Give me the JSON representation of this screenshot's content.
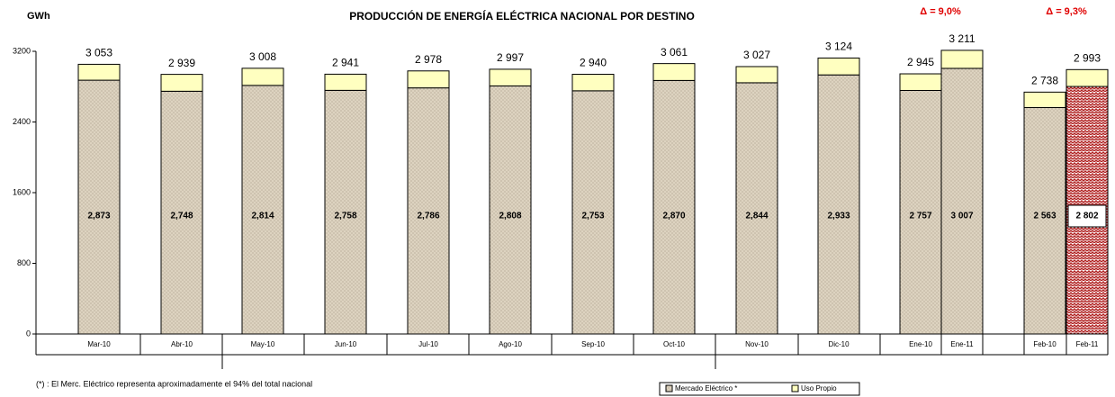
{
  "chart_data": {
    "type": "stacked_bar",
    "title": "PRODUCCIÓN DE ENERGÍA ELÉCTRICA NACIONAL POR DESTINO",
    "y_label": "GWh",
    "annotations": [
      "Δ = 9,0%",
      "Δ = 9,3%"
    ],
    "footnote": "(*) : El Merc. Eléctrico representa aproximadamente el 94% del total nacional",
    "categories": [
      "Mar-10",
      "Abr-10",
      "May-10",
      "Jun-10",
      "Jul-10",
      "Ago-10",
      "Sep-10",
      "Oct-10",
      "Nov-10",
      "Dic-10",
      "Ene-10",
      "Ene-11",
      "Feb-10",
      "Feb-11"
    ],
    "series": [
      {
        "name": "Mercado Eléctrico *",
        "color": "#ddd3c0",
        "values": [
          2873,
          2748,
          2814,
          2758,
          2786,
          2808,
          2753,
          2870,
          2844,
          2933,
          2757,
          3007,
          2563,
          2802
        ],
        "value_labels": [
          "2,873",
          "2,748",
          "2,814",
          "2,758",
          "2,786",
          "2,808",
          "2,753",
          "2,870",
          "2,844",
          "2,933",
          "2 757",
          "3 007",
          "2 563",
          "2 802"
        ]
      },
      {
        "name": "Uso Propio",
        "color": "#ffffc0",
        "values": [
          180,
          191,
          194,
          183,
          192,
          189,
          187,
          191,
          183,
          191,
          188,
          204,
          175,
          191
        ]
      }
    ],
    "totals": [
      3053,
      2939,
      3008,
      2941,
      2978,
      2997,
      2940,
      3061,
      3027,
      3124,
      2945,
      3211,
      2738,
      2993
    ],
    "total_labels": [
      "3 053",
      "2 939",
      "3 008",
      "2 941",
      "2 978",
      "2 997",
      "2 940",
      "3 061",
      "3 027",
      "3 124",
      "2 945",
      "3 211",
      "2 738",
      "2 993"
    ],
    "ylim": [
      0,
      3200
    ],
    "yticks": [
      0,
      800,
      1600,
      2400,
      3200
    ],
    "grid": false
  }
}
